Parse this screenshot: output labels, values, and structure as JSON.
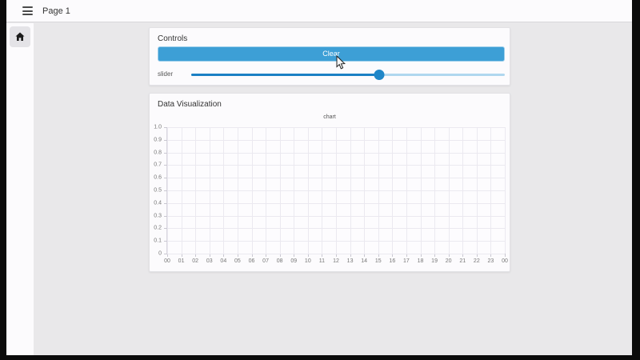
{
  "header": {
    "title": "Page 1"
  },
  "sidebar": {
    "home_icon": "home"
  },
  "controls_card": {
    "title": "Controls",
    "clear_button_label": "Clear",
    "slider": {
      "label": "slider",
      "value_percent": 60
    }
  },
  "viz_card": {
    "title": "Data Visualization"
  },
  "chart_data": {
    "type": "line",
    "title": "chart",
    "series": [],
    "x_tick_labels": [
      "00",
      "01",
      "02",
      "03",
      "04",
      "05",
      "06",
      "07",
      "08",
      "09",
      "10",
      "11",
      "12",
      "13",
      "14",
      "15",
      "16",
      "17",
      "18",
      "19",
      "20",
      "21",
      "22",
      "23",
      "00"
    ],
    "y_tick_labels": [
      "1.0",
      "0.9",
      "0.8",
      "0.7",
      "0.6",
      "0.5",
      "0.4",
      "0.3",
      "0.2",
      "0.1",
      "0"
    ],
    "ylim": [
      0,
      1
    ],
    "grid": true,
    "legend": false,
    "note": "empty plot, no data points rendered"
  },
  "colors": {
    "accent_blue": "#3d9fd6",
    "slider_fill": "#1b80c4",
    "slider_rail": "#b0d7ef",
    "background": "#e9e8ea",
    "card_background": "#fcfbfd",
    "grid_line": "#ebe9f0"
  }
}
